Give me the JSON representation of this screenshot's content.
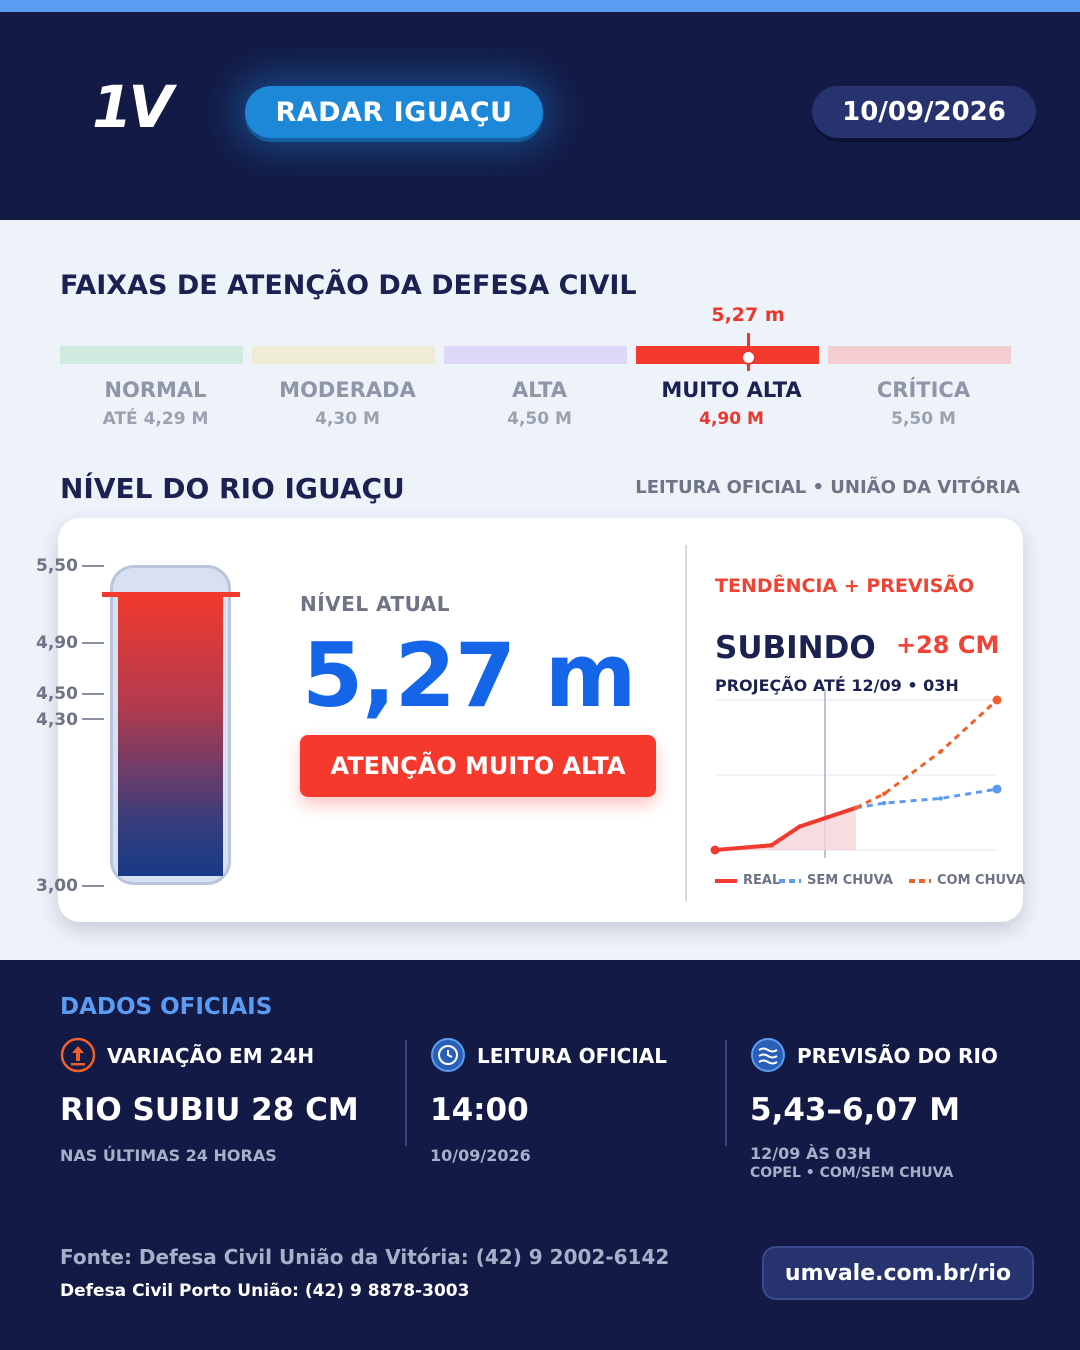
{
  "header": {
    "logo": "1V",
    "badge": "RADAR IGUAÇU",
    "date": "10/09/2026"
  },
  "bands": {
    "title": "FAIXAS DE ATENÇÃO DA DEFESA CIVIL",
    "marker_value": "5,27 m",
    "items": [
      {
        "name": "NORMAL",
        "value": "ATÉ 4,29 M",
        "color": "#cfeade"
      },
      {
        "name": "MODERADA",
        "value": "4,30 M",
        "color": "#efecd6"
      },
      {
        "name": "ALTA",
        "value": "4,50 M",
        "color": "#ddd8f6"
      },
      {
        "name": "MUITO ALTA",
        "value": "4,90 M",
        "color": "#f5392c"
      },
      {
        "name": "CRÍTICA",
        "value": "5,50 M",
        "color": "#f3cdd2"
      }
    ]
  },
  "level": {
    "title": "NÍVEL DO RIO IGUAÇU",
    "subtitle": "LEITURA OFICIAL • UNIÃO DA VITÓRIA",
    "scale": [
      "5,50",
      "4,90",
      "4,50",
      "4,30",
      "3,00"
    ],
    "current_label": "NÍVEL ATUAL",
    "current_value": "5,27 m",
    "alert": "ATENÇÃO MUITO ALTA"
  },
  "trend": {
    "title": "TENDÊNCIA + PREVISÃO",
    "direction": "SUBINDO",
    "delta": "+28 CM",
    "projection": "PROJEÇÃO ATÉ 12/09 • 03H",
    "legend_real": "REAL",
    "legend_sem": "SEM CHUVA",
    "legend_com": "COM CHUVA",
    "colors": {
      "real": "#ef3a2f",
      "sem": "#5b9cf2",
      "com": "#f0602a"
    }
  },
  "chart_data": {
    "type": "line",
    "title": "",
    "xlabel": "",
    "ylabel": "",
    "series": [
      {
        "name": "REAL",
        "x": [
          0,
          0.2,
          0.3,
          0.4,
          0.5
        ],
        "values": [
          0.0,
          0.05,
          0.25,
          0.35,
          0.45
        ]
      },
      {
        "name": "SEM CHUVA",
        "x": [
          0.5,
          0.6,
          0.8,
          1.0
        ],
        "values": [
          0.45,
          0.5,
          0.55,
          0.65
        ]
      },
      {
        "name": "COM CHUVA",
        "x": [
          0.5,
          0.6,
          0.8,
          1.0
        ],
        "values": [
          0.45,
          0.6,
          1.05,
          1.6
        ]
      }
    ]
  },
  "footer": {
    "title": "DADOS OFICIAIS",
    "cols": [
      {
        "head": "VARIAÇÃO EM 24H",
        "big": "RIO SUBIU 28 CM",
        "sub": "NAS ÚLTIMAS 24 HORAS",
        "sub2": ""
      },
      {
        "head": "LEITURA OFICIAL",
        "big": "14:00",
        "sub": "10/09/2026",
        "sub2": ""
      },
      {
        "head": "PREVISÃO DO RIO",
        "big": "5,43–6,07 M",
        "sub": "12/09 ÀS 03H",
        "sub2": "COPEL • COM/SEM CHUVA"
      }
    ],
    "source1": "Fonte: Defesa Civil União da Vitória: (42) 9 2002-6142",
    "source2": "Defesa Civil Porto União: (42) 9 8878-3003",
    "url": "umvale.com.br/rio"
  }
}
